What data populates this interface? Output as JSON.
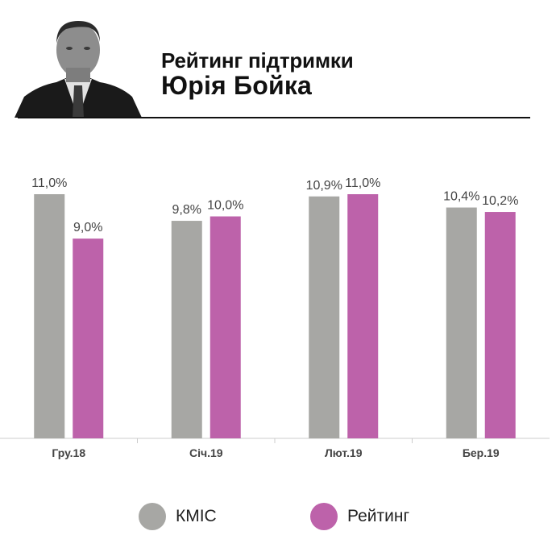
{
  "header": {
    "title_line1": "Рейтинг підтримки",
    "title_line2": "Юрія Бойка"
  },
  "colors": {
    "kmis": "#a7a7a4",
    "rating": "#bd62aa",
    "label": "#444444",
    "axis": "#cccccc"
  },
  "chart_data": {
    "type": "bar",
    "categories": [
      "Гру.18",
      "Січ.19",
      "Лют.19",
      "Бер.19"
    ],
    "series": [
      {
        "name": "КМІС",
        "values": [
          11.0,
          9.8,
          10.9,
          10.4
        ],
        "labels": [
          "11,0%",
          "9,8%",
          "10,9%",
          "10,4%"
        ]
      },
      {
        "name": "Рейтинг",
        "values": [
          9.0,
          10.0,
          11.0,
          10.2
        ],
        "labels": [
          "9,0%",
          "10,0%",
          "11,0%",
          "10,2%"
        ]
      }
    ],
    "ylim": [
      0,
      11.0
    ],
    "grid": false,
    "legend": "bottom"
  }
}
